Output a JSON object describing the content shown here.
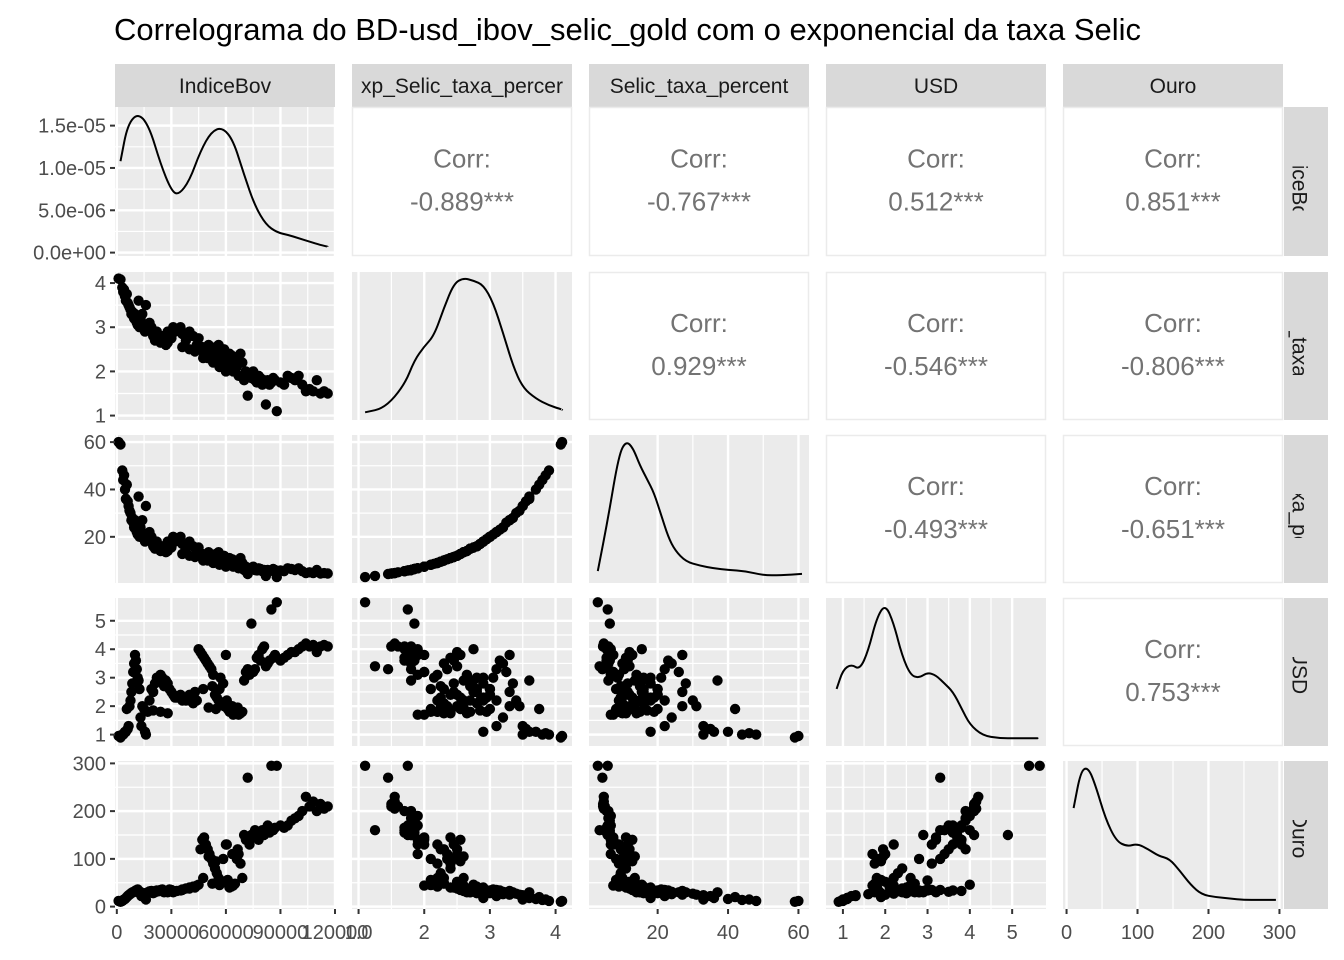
{
  "title": "Correlograma do BD-usd_ibov_selic_gold com o exponencial da taxa Selic",
  "variables": [
    "IndiceBov",
    "exp_Selic_taxa_percent",
    "Selic_taxa_percent",
    "USD",
    "Ouro"
  ],
  "strip_labels_top": [
    "IndiceBov",
    "xp_Selic_taxa_percer",
    "Selic_taxa_percent",
    "USD",
    "Ouro"
  ],
  "strip_labels_right": [
    "IndiceBov",
    "Selic_taxa_pe",
    "lic_taxa_perce",
    "USD",
    "Ouro"
  ],
  "corr_label": "Corr:",
  "correlations": [
    {
      "row": 0,
      "col": 1,
      "text": "-0.889***"
    },
    {
      "row": 0,
      "col": 2,
      "text": "-0.767***"
    },
    {
      "row": 0,
      "col": 3,
      "text": "0.512***"
    },
    {
      "row": 0,
      "col": 4,
      "text": "0.851***"
    },
    {
      "row": 1,
      "col": 2,
      "text": "0.929***"
    },
    {
      "row": 1,
      "col": 3,
      "text": "-0.546***"
    },
    {
      "row": 1,
      "col": 4,
      "text": "-0.806***"
    },
    {
      "row": 2,
      "col": 3,
      "text": "-0.493***"
    },
    {
      "row": 2,
      "col": 4,
      "text": "-0.651***"
    },
    {
      "row": 3,
      "col": 4,
      "text": "0.753***"
    }
  ],
  "y_ticks": [
    {
      "values": [
        0,
        5e-06,
        1e-05,
        1.5e-05
      ],
      "labels": [
        "0.0e+00",
        "5.0e-06",
        "1.0e-05",
        "1.5e-05"
      ]
    },
    {
      "values": [
        1,
        2,
        3,
        4
      ],
      "labels": [
        "1",
        "2",
        "3",
        "4"
      ]
    },
    {
      "values": [
        20,
        40,
        60
      ],
      "labels": [
        "20",
        "40",
        "60"
      ]
    },
    {
      "values": [
        1,
        2,
        3,
        4,
        5
      ],
      "labels": [
        "1",
        "2",
        "3",
        "4",
        "5"
      ]
    },
    {
      "values": [
        0,
        100,
        200,
        300
      ],
      "labels": [
        "0",
        "100",
        "200",
        "300"
      ]
    }
  ],
  "x_ticks": [
    {
      "values": [
        0,
        30000,
        60000,
        90000,
        120000
      ],
      "labels": [
        "0",
        "30000",
        "60000",
        "90000",
        "120000"
      ]
    },
    {
      "values": [
        1,
        2,
        3,
        4
      ],
      "labels": [
        "1.0",
        "2",
        "3",
        "4"
      ]
    },
    {
      "values": [
        20,
        40,
        60
      ],
      "labels": [
        "20",
        "40",
        "60"
      ]
    },
    {
      "values": [
        1,
        2,
        3,
        4,
        5
      ],
      "labels": [
        "1",
        "2",
        "3",
        "4",
        "5"
      ]
    },
    {
      "values": [
        0,
        100,
        200,
        300
      ],
      "labels": [
        "0",
        "100",
        "200",
        "300"
      ]
    }
  ],
  "chart_data": {
    "type": "scatter",
    "subtype": "correlogram (ggpairs)",
    "title": "Correlograma do BD-usd_ibov_selic_gold com o exponencial da taxa Selic",
    "grid": true,
    "ranges": {
      "IndiceBov": [
        0,
        118000
      ],
      "exp_Selic_taxa_percent": [
        1.05,
        4.15
      ],
      "Selic_taxa_percent": [
        2.8,
        61.5
      ],
      "USD": [
        0.85,
        5.65
      ],
      "Ouro": [
        10,
        295
      ]
    },
    "density_ylim_IndiceBov": [
      0,
      1.72e-05
    ],
    "densities": [
      {
        "variable": "IndiceBov",
        "x": [
          2000,
          6000,
          12000,
          18000,
          24000,
          30000,
          34000,
          40000,
          46000,
          52000,
          58000,
          64000,
          70000,
          76000,
          82000,
          88000,
          94000,
          100000,
          106000,
          112000,
          116000
        ],
        "y": [
          1.08e-05,
          1.52e-05,
          1.65e-05,
          1.48e-05,
          1.05e-05,
          7.3e-06,
          6.8e-06,
          8.5e-06,
          1.2e-05,
          1.43e-05,
          1.48e-05,
          1.33e-05,
          9.2e-06,
          5.5e-06,
          3.3e-06,
          2.4e-06,
          2.1e-06,
          1.7e-06,
          1.3e-06,
          9e-07,
          7e-07
        ]
      },
      {
        "variable": "exp_Selic_taxa_percent",
        "x": [
          1.1,
          1.4,
          1.7,
          1.85,
          2.0,
          2.15,
          2.3,
          2.45,
          2.6,
          2.75,
          2.9,
          3.05,
          3.2,
          3.35,
          3.5,
          3.7,
          3.9,
          4.1
        ],
        "y": [
          0.02,
          0.05,
          0.22,
          0.4,
          0.5,
          0.58,
          0.78,
          0.96,
          1.0,
          0.98,
          0.95,
          0.82,
          0.6,
          0.36,
          0.2,
          0.12,
          0.07,
          0.04
        ],
        "normalized": true
      },
      {
        "variable": "Selic_taxa_percent",
        "x": [
          3,
          6,
          9,
          11,
          13,
          15,
          17,
          19,
          21,
          23,
          25,
          28,
          32,
          36,
          40,
          45,
          50,
          55,
          61
        ],
        "y": [
          0.05,
          0.45,
          0.9,
          1.0,
          0.95,
          0.82,
          0.72,
          0.62,
          0.46,
          0.3,
          0.2,
          0.12,
          0.09,
          0.07,
          0.06,
          0.05,
          0.02,
          0.02,
          0.03
        ],
        "normalized": true
      },
      {
        "variable": "USD",
        "x": [
          0.85,
          1.0,
          1.2,
          1.4,
          1.6,
          1.8,
          2.0,
          2.2,
          2.4,
          2.6,
          2.8,
          3.0,
          3.2,
          3.4,
          3.6,
          3.8,
          4.0,
          4.3,
          4.7,
          5.1,
          5.6
        ],
        "y": [
          0.38,
          0.52,
          0.56,
          0.52,
          0.66,
          0.9,
          1.0,
          0.86,
          0.62,
          0.48,
          0.46,
          0.5,
          0.48,
          0.42,
          0.36,
          0.24,
          0.12,
          0.04,
          0.02,
          0.02,
          0.02
        ],
        "normalized": true
      },
      {
        "variable": "Ouro",
        "x": [
          10,
          20,
          30,
          40,
          55,
          70,
          85,
          100,
          115,
          130,
          145,
          160,
          175,
          190,
          210,
          230,
          250,
          270,
          295
        ],
        "y": [
          0.7,
          0.97,
          1.0,
          0.88,
          0.62,
          0.46,
          0.42,
          0.44,
          0.4,
          0.35,
          0.33,
          0.24,
          0.14,
          0.07,
          0.05,
          0.04,
          0.03,
          0.03,
          0.03
        ],
        "normalized": true
      }
    ],
    "observations_columns": [
      "IndiceBov",
      "exp_Selic_taxa_percent",
      "Selic_taxa_percent",
      "USD",
      "Ouro"
    ],
    "observations": [
      [
        1000,
        4.1,
        60,
        0.95,
        12
      ],
      [
        2000,
        4.08,
        59,
        0.9,
        10
      ],
      [
        3000,
        3.9,
        48,
        1.0,
        12
      ],
      [
        3500,
        3.8,
        44,
        1.0,
        14
      ],
      [
        4000,
        3.85,
        46,
        1.05,
        15
      ],
      [
        4500,
        3.7,
        40,
        1.1,
        16
      ],
      [
        5000,
        3.6,
        36,
        1.1,
        18
      ],
      [
        5500,
        3.75,
        42,
        1.9,
        20
      ],
      [
        6000,
        3.55,
        35,
        1.2,
        22
      ],
      [
        6500,
        3.5,
        33,
        1.3,
        24
      ],
      [
        7000,
        3.45,
        31,
        2.0,
        25
      ],
      [
        7500,
        3.4,
        30,
        2.2,
        27
      ],
      [
        8000,
        3.3,
        27,
        2.5,
        28
      ],
      [
        8500,
        3.35,
        28,
        2.8,
        30
      ],
      [
        9000,
        3.25,
        26,
        3.2,
        30
      ],
      [
        9500,
        3.2,
        24,
        3.5,
        31
      ],
      [
        10000,
        3.3,
        27,
        3.8,
        33
      ],
      [
        10500,
        3.15,
        23,
        3.6,
        34
      ],
      [
        11000,
        3.1,
        22,
        3.3,
        35
      ],
      [
        11500,
        3.05,
        21,
        3.0,
        36
      ],
      [
        12000,
        3.6,
        37,
        2.9,
        30
      ],
      [
        12500,
        3.0,
        20,
        2.6,
        32
      ],
      [
        13000,
        3.2,
        24,
        1.6,
        26
      ],
      [
        13500,
        3.1,
        22,
        1.3,
        22
      ],
      [
        14000,
        3.3,
        27,
        2.0,
        25
      ],
      [
        15000,
        3.0,
        20,
        1.9,
        28
      ],
      [
        15500,
        2.9,
        18,
        1.1,
        18
      ],
      [
        16000,
        3.5,
        33,
        1.0,
        15
      ],
      [
        17000,
        2.95,
        19,
        1.8,
        30
      ],
      [
        18000,
        3.1,
        22,
        2.2,
        32
      ],
      [
        19000,
        3.0,
        20,
        2.6,
        33
      ],
      [
        20000,
        2.8,
        16,
        2.5,
        28
      ],
      [
        21000,
        2.7,
        15,
        2.8,
        30
      ],
      [
        22000,
        2.9,
        18,
        3.0,
        34
      ],
      [
        23000,
        2.75,
        15.5,
        2.9,
        32
      ],
      [
        24000,
        2.65,
        14,
        3.1,
        35
      ],
      [
        25000,
        2.8,
        16,
        3.0,
        36
      ],
      [
        26000,
        2.7,
        15,
        2.7,
        30
      ],
      [
        27000,
        2.6,
        13.5,
        2.9,
        33
      ],
      [
        28000,
        2.9,
        18,
        2.8,
        34
      ],
      [
        29000,
        2.8,
        16,
        2.6,
        36
      ],
      [
        30000,
        2.75,
        15.5,
        2.5,
        35
      ],
      [
        31000,
        3.0,
        20,
        2.4,
        30
      ],
      [
        32000,
        2.9,
        18,
        2.3,
        32
      ],
      [
        33000,
        2.95,
        19,
        2.3,
        33
      ],
      [
        35000,
        3.0,
        20,
        2.4,
        34
      ],
      [
        36000,
        2.85,
        17,
        2.2,
        36
      ],
      [
        38000,
        2.7,
        15,
        2.2,
        38
      ],
      [
        40000,
        2.9,
        18,
        2.2,
        40
      ],
      [
        42000,
        2.8,
        16,
        2.1,
        42
      ],
      [
        44000,
        2.6,
        13.5,
        2.2,
        44
      ],
      [
        45000,
        2.75,
        15.5,
        4.0,
        46
      ],
      [
        46000,
        2.5,
        12,
        3.9,
        120
      ],
      [
        47000,
        2.55,
        12.8,
        3.8,
        140
      ],
      [
        48000,
        2.4,
        11,
        3.7,
        145
      ],
      [
        49000,
        2.45,
        11.5,
        3.6,
        130
      ],
      [
        50000,
        2.3,
        10,
        3.5,
        120
      ],
      [
        51000,
        2.5,
        12,
        3.4,
        110
      ],
      [
        52000,
        2.35,
        10.5,
        3.3,
        100
      ],
      [
        53000,
        2.2,
        9,
        3.1,
        90
      ],
      [
        54000,
        2.4,
        11,
        2.4,
        80
      ],
      [
        55000,
        2.25,
        9.5,
        2.3,
        70
      ],
      [
        56000,
        2.6,
        13.5,
        2.2,
        60
      ],
      [
        57000,
        2.15,
        8.6,
        3.0,
        55
      ],
      [
        58000,
        2.3,
        10,
        2.1,
        50
      ],
      [
        59000,
        2.5,
        12,
        2.0,
        52
      ],
      [
        60000,
        2.0,
        7.4,
        3.8,
        130
      ],
      [
        61000,
        2.1,
        8.2,
        1.9,
        56
      ],
      [
        62000,
        2.4,
        11,
        1.8,
        40
      ],
      [
        63000,
        2.2,
        9,
        1.8,
        42
      ],
      [
        64000,
        2.0,
        7.4,
        1.7,
        44
      ],
      [
        65000,
        2.3,
        10,
        1.75,
        48
      ],
      [
        66000,
        2.1,
        8.2,
        1.8,
        100
      ],
      [
        67000,
        1.9,
        6.7,
        1.7,
        110
      ],
      [
        68000,
        2.4,
        11,
        1.75,
        90
      ],
      [
        69000,
        2.2,
        9,
        1.8,
        60
      ],
      [
        70000,
        1.8,
        6,
        2.9,
        150
      ],
      [
        71000,
        2.0,
        7.4,
        3.2,
        140
      ],
      [
        72000,
        1.45,
        4.3,
        3.3,
        270
      ],
      [
        73000,
        1.9,
        6.7,
        3.1,
        130
      ],
      [
        74000,
        1.85,
        6.4,
        4.9,
        150
      ],
      [
        75000,
        2.0,
        7.4,
        3.2,
        145
      ],
      [
        76000,
        1.8,
        6,
        3.3,
        160
      ],
      [
        77000,
        1.75,
        5.8,
        3.7,
        150
      ],
      [
        78000,
        1.9,
        6.7,
        3.8,
        140
      ],
      [
        79000,
        1.85,
        6.4,
        3.6,
        155
      ],
      [
        80000,
        1.7,
        5.5,
        4.0,
        160
      ],
      [
        81000,
        1.8,
        6,
        4.1,
        150
      ],
      [
        82000,
        1.25,
        3.5,
        3.4,
        160
      ],
      [
        83000,
        1.8,
        6,
        3.5,
        170
      ],
      [
        84000,
        1.7,
        5.5,
        3.6,
        155
      ],
      [
        85000,
        1.75,
        5.8,
        5.4,
        295
      ],
      [
        86000,
        1.85,
        6.4,
        3.7,
        160
      ],
      [
        87000,
        1.8,
        6,
        3.8,
        165
      ],
      [
        88000,
        1.1,
        3,
        5.65,
        295
      ],
      [
        90000,
        1.75,
        5.8,
        3.6,
        170
      ],
      [
        92000,
        1.7,
        5.5,
        3.7,
        165
      ],
      [
        94000,
        1.9,
        6.7,
        3.8,
        170
      ],
      [
        96000,
        1.85,
        6.4,
        3.9,
        180
      ],
      [
        98000,
        1.8,
        6,
        3.9,
        185
      ],
      [
        100000,
        1.9,
        6.7,
        4.0,
        190
      ],
      [
        102000,
        1.7,
        5.5,
        4.1,
        200
      ],
      [
        104000,
        1.55,
        4.7,
        4.2,
        230
      ],
      [
        106000,
        1.6,
        5,
        4.1,
        210
      ],
      [
        108000,
        1.55,
        4.7,
        4.15,
        220
      ],
      [
        110000,
        1.8,
        6,
        3.9,
        200
      ],
      [
        112000,
        1.5,
        4.5,
        4.1,
        215
      ],
      [
        114000,
        1.55,
        4.7,
        4.15,
        205
      ],
      [
        116000,
        1.5,
        4.5,
        4.1,
        210
      ],
      [
        20000,
        2.85,
        17,
        1.85,
        32
      ],
      [
        24000,
        2.7,
        15,
        1.8,
        34
      ],
      [
        28000,
        2.65,
        14,
        1.75,
        30
      ],
      [
        36000,
        2.55,
        12.8,
        2.3,
        35
      ],
      [
        40000,
        2.5,
        12,
        2.4,
        38
      ],
      [
        43000,
        2.45,
        11.5,
        2.5,
        40
      ],
      [
        47500,
        2.3,
        10,
        2.6,
        60
      ],
      [
        52500,
        2.25,
        9.5,
        2.7,
        48
      ],
      [
        56500,
        2.1,
        8.2,
        2.6,
        45
      ],
      [
        60500,
        2.2,
        9,
        2.2,
        130
      ],
      [
        63500,
        2.35,
        10.5,
        2.0,
        110
      ],
      [
        66500,
        2.25,
        9.5,
        1.95,
        120
      ],
      [
        58500,
        2.45,
        11.5,
        2.8,
        100
      ],
      [
        54500,
        2.55,
        12.8,
        1.9,
        95
      ],
      [
        50500,
        2.6,
        13.5,
        1.95,
        105
      ]
    ]
  }
}
